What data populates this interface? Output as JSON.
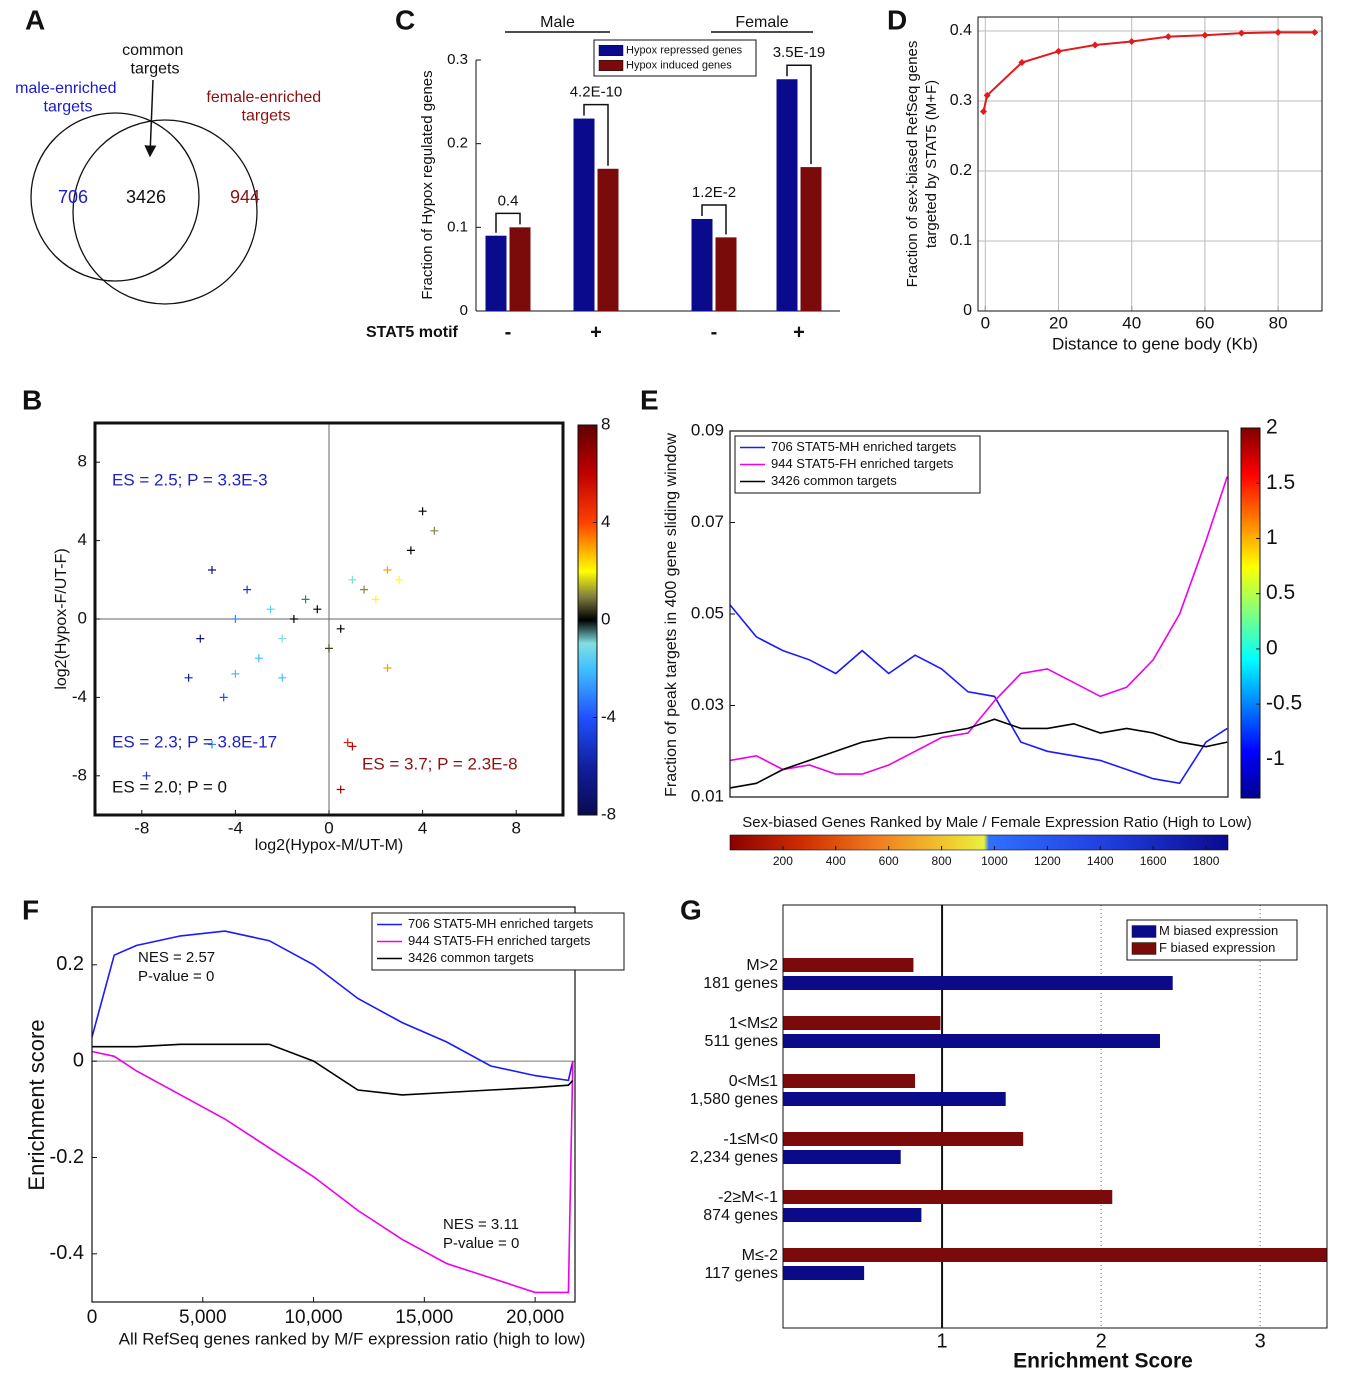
{
  "chart_data": [
    {
      "type": "venn",
      "label": "A",
      "sets": [
        {
          "name": "male-enriched targets",
          "color": "#1a1ad0",
          "value": 706
        },
        {
          "name": "female-enriched targets",
          "color": "#8b1010",
          "value": 944
        }
      ],
      "common": {
        "name": "common targets",
        "value": 3426
      }
    },
    {
      "type": "scatter",
      "label": "B",
      "xlabel": "log2(Hypox-M/UT-M)",
      "ylabel": "log2(Hypox-F/UT-F)",
      "xlim": [
        -10,
        10
      ],
      "ylim": [
        -10,
        10
      ],
      "xticks": [
        -8,
        -4,
        0,
        4,
        8
      ],
      "yticks": [
        -8,
        -4,
        0,
        4,
        8
      ],
      "x": [
        -7.8,
        -6,
        -5.5,
        -5,
        -4.5,
        -4,
        -3.5,
        -3,
        -2.5,
        -2,
        -1.5,
        -1,
        -0.5,
        0,
        0.5,
        1,
        1.5,
        2,
        2.5,
        3,
        3.5,
        4,
        4.5,
        -5,
        -4,
        1,
        0.5,
        0.8,
        -2,
        2.5
      ],
      "y": [
        -8,
        -3,
        -1,
        2.5,
        -4,
        0,
        1.5,
        -2,
        0.5,
        -1,
        0,
        1,
        0.5,
        -1.5,
        -0.5,
        2,
        1.5,
        1,
        2.5,
        2,
        3.5,
        5.5,
        4.5,
        -6.4,
        -2.8,
        -6.5,
        -8.7,
        -6.3,
        -3,
        -2.5
      ],
      "c": [
        -5,
        -6,
        -7,
        -7,
        -4,
        -3,
        -5,
        -2,
        -1.5,
        -1,
        0,
        -0.5,
        0,
        0.5,
        0,
        -1,
        1,
        2,
        3,
        2,
        0,
        0,
        1,
        -3,
        -2,
        6,
        7,
        5,
        -2,
        3
      ],
      "clim": [
        -8,
        8
      ],
      "cticks": [
        -8,
        -4,
        0,
        4,
        8
      ],
      "annotations": [
        {
          "text": "ES = 2.5; P = 3.3E-3",
          "color": "#2020c0"
        },
        {
          "text": "ES = 2.3; P = 3.8E-17",
          "color": "#2020c0"
        },
        {
          "text": "ES = 2.0; P = 0",
          "color": "#111111"
        },
        {
          "text": "ES = 3.7; P = 2.3E-8",
          "color": "#8b1010"
        }
      ]
    },
    {
      "type": "bar",
      "label": "C",
      "groups": [
        "Male",
        "Female"
      ],
      "categories": [
        "-",
        "+",
        "-",
        "+"
      ],
      "xlabel": "STAT5 motif",
      "ylabel": "Fraction of Hypox regulated genes",
      "ylim": [
        0,
        0.3
      ],
      "yticks": [
        0,
        0.1,
        0.2,
        0.3
      ],
      "series": [
        {
          "name": "Hypox repressed genes",
          "color": "#0a0a8c",
          "values": [
            0.09,
            0.23,
            0.11,
            0.277
          ]
        },
        {
          "name": "Hypox induced genes",
          "color": "#7b0b0b",
          "values": [
            0.1,
            0.17,
            0.088,
            0.172
          ]
        }
      ],
      "annotations": [
        "0.4",
        "4.2E-10",
        "1.2E-2",
        "3.5E-19"
      ]
    },
    {
      "type": "line",
      "label": "D",
      "xlabel": "Distance to gene body (Kb)",
      "ylabel": [
        "Fraction of sex-biased RefSeq genes",
        "targeted by STAT5 (M+F)"
      ],
      "xlim": [
        -2,
        92
      ],
      "xticks": [
        0,
        20,
        40,
        60,
        80
      ],
      "ylim": [
        0,
        0.42
      ],
      "yticks": [
        0,
        0.1,
        0.2,
        0.3,
        0.4
      ],
      "grid": true,
      "x": [
        -0.5,
        0.5,
        10,
        20,
        30,
        40,
        50,
        60,
        70,
        80,
        90
      ],
      "series": [
        {
          "color": "#e31a1c",
          "values": [
            0.285,
            0.308,
            0.355,
            0.371,
            0.38,
            0.385,
            0.392,
            0.394,
            0.397,
            0.398,
            0.398
          ]
        }
      ]
    },
    {
      "type": "line",
      "label": "E",
      "xlabel": "Sex-biased Genes Ranked by Male / Female Expression Ratio (High to Low)",
      "ylabel": "Fraction of peak targets in 400 gene sliding window",
      "xlim": [
        0,
        1883
      ],
      "xticks": [
        200,
        400,
        600,
        800,
        1000,
        1200,
        1400,
        1600,
        1800
      ],
      "ylim": [
        0.01,
        0.09
      ],
      "yticks": [
        0.01,
        0.03,
        0.05,
        0.07,
        0.09
      ],
      "clim": [
        -1.35,
        2
      ],
      "cticks": [
        -1,
        -0.5,
        0,
        0.5,
        1,
        1.5,
        2
      ],
      "x": [
        0,
        100,
        200,
        300,
        400,
        500,
        600,
        700,
        800,
        900,
        1000,
        1100,
        1200,
        1300,
        1400,
        1500,
        1600,
        1700,
        1800,
        1880
      ],
      "series": [
        {
          "name": "706 STAT5-MH enriched targets",
          "color": "#1a1aff",
          "values": [
            0.052,
            0.045,
            0.042,
            0.04,
            0.037,
            0.042,
            0.037,
            0.041,
            0.038,
            0.033,
            0.032,
            0.022,
            0.02,
            0.019,
            0.018,
            0.016,
            0.014,
            0.013,
            0.022,
            0.025
          ]
        },
        {
          "name": "944 STAT5-FH enriched targets",
          "color": "#ee00ee",
          "values": [
            0.018,
            0.019,
            0.016,
            0.017,
            0.015,
            0.015,
            0.017,
            0.02,
            0.023,
            0.024,
            0.031,
            0.037,
            0.038,
            0.035,
            0.032,
            0.034,
            0.04,
            0.05,
            0.066,
            0.08
          ]
        },
        {
          "name": "3426 common targets",
          "color": "#000000",
          "values": [
            0.012,
            0.013,
            0.016,
            0.018,
            0.02,
            0.022,
            0.023,
            0.023,
            0.024,
            0.025,
            0.027,
            0.025,
            0.025,
            0.026,
            0.024,
            0.025,
            0.024,
            0.022,
            0.021,
            0.022
          ]
        }
      ]
    },
    {
      "type": "line",
      "label": "F",
      "xlabel": "All RefSeq genes ranked by M/F expression ratio (high to low)",
      "ylabel": "Enrichment score",
      "xlim": [
        0,
        21800
      ],
      "xticks": [
        0,
        {
          "value": 5000,
          "label": "5,000"
        },
        {
          "value": 10000,
          "label": "10,000"
        },
        {
          "value": 15000,
          "label": "15,000"
        },
        {
          "value": 20000,
          "label": "20,000"
        }
      ],
      "ylim": [
        -0.5,
        0.32
      ],
      "yticks": [
        -0.4,
        -0.2,
        0,
        0.2
      ],
      "x": [
        0,
        1000,
        2000,
        4000,
        6000,
        8000,
        10000,
        12000,
        14000,
        16000,
        18000,
        20000,
        21500,
        21700
      ],
      "series": [
        {
          "name": "706 STAT5-MH enriched targets",
          "color": "#1a1aff",
          "values": [
            0.05,
            0.22,
            0.24,
            0.26,
            0.27,
            0.25,
            0.2,
            0.13,
            0.08,
            0.04,
            -0.01,
            -0.03,
            -0.04,
            0.0
          ]
        },
        {
          "name": "944 STAT5-FH enriched targets",
          "color": "#ee00ee",
          "values": [
            0.02,
            0.01,
            -0.02,
            -0.07,
            -0.12,
            -0.18,
            -0.24,
            -0.31,
            -0.37,
            -0.42,
            -0.45,
            -0.48,
            -0.48,
            0.0
          ]
        },
        {
          "name": "3426 common targets",
          "color": "#000000",
          "values": [
            0.03,
            0.03,
            0.03,
            0.035,
            0.035,
            0.035,
            0.0,
            -0.06,
            -0.07,
            -0.065,
            -0.06,
            -0.055,
            -0.05,
            -0.04
          ]
        }
      ],
      "annotations": [
        "NES = 2.57",
        "P-value = 0",
        "NES = 3.11",
        "P-value = 0"
      ]
    },
    {
      "type": "barh",
      "label": "G",
      "xlabel": "Enrichment Score",
      "categories": [
        "M>2",
        "1<M≤2",
        "0<M≤1",
        "-1≤M<0",
        "-2≥M<-1",
        "M≤-2"
      ],
      "category_counts": [
        "181 genes",
        "511 genes",
        "1,580 genes",
        "2,234 genes",
        "874 genes",
        "117 genes"
      ],
      "xlim": [
        0,
        3.42
      ],
      "xticks": [
        1,
        2,
        3
      ],
      "series": [
        {
          "name": "M biased expression",
          "color": "#0b0b8a",
          "values": [
            2.45,
            2.37,
            1.4,
            0.74,
            0.87,
            0.51
          ]
        },
        {
          "name": "F biased expression",
          "color": "#7b0b0b",
          "values": [
            0.82,
            0.99,
            0.83,
            1.51,
            2.07,
            3.42
          ]
        }
      ]
    }
  ]
}
